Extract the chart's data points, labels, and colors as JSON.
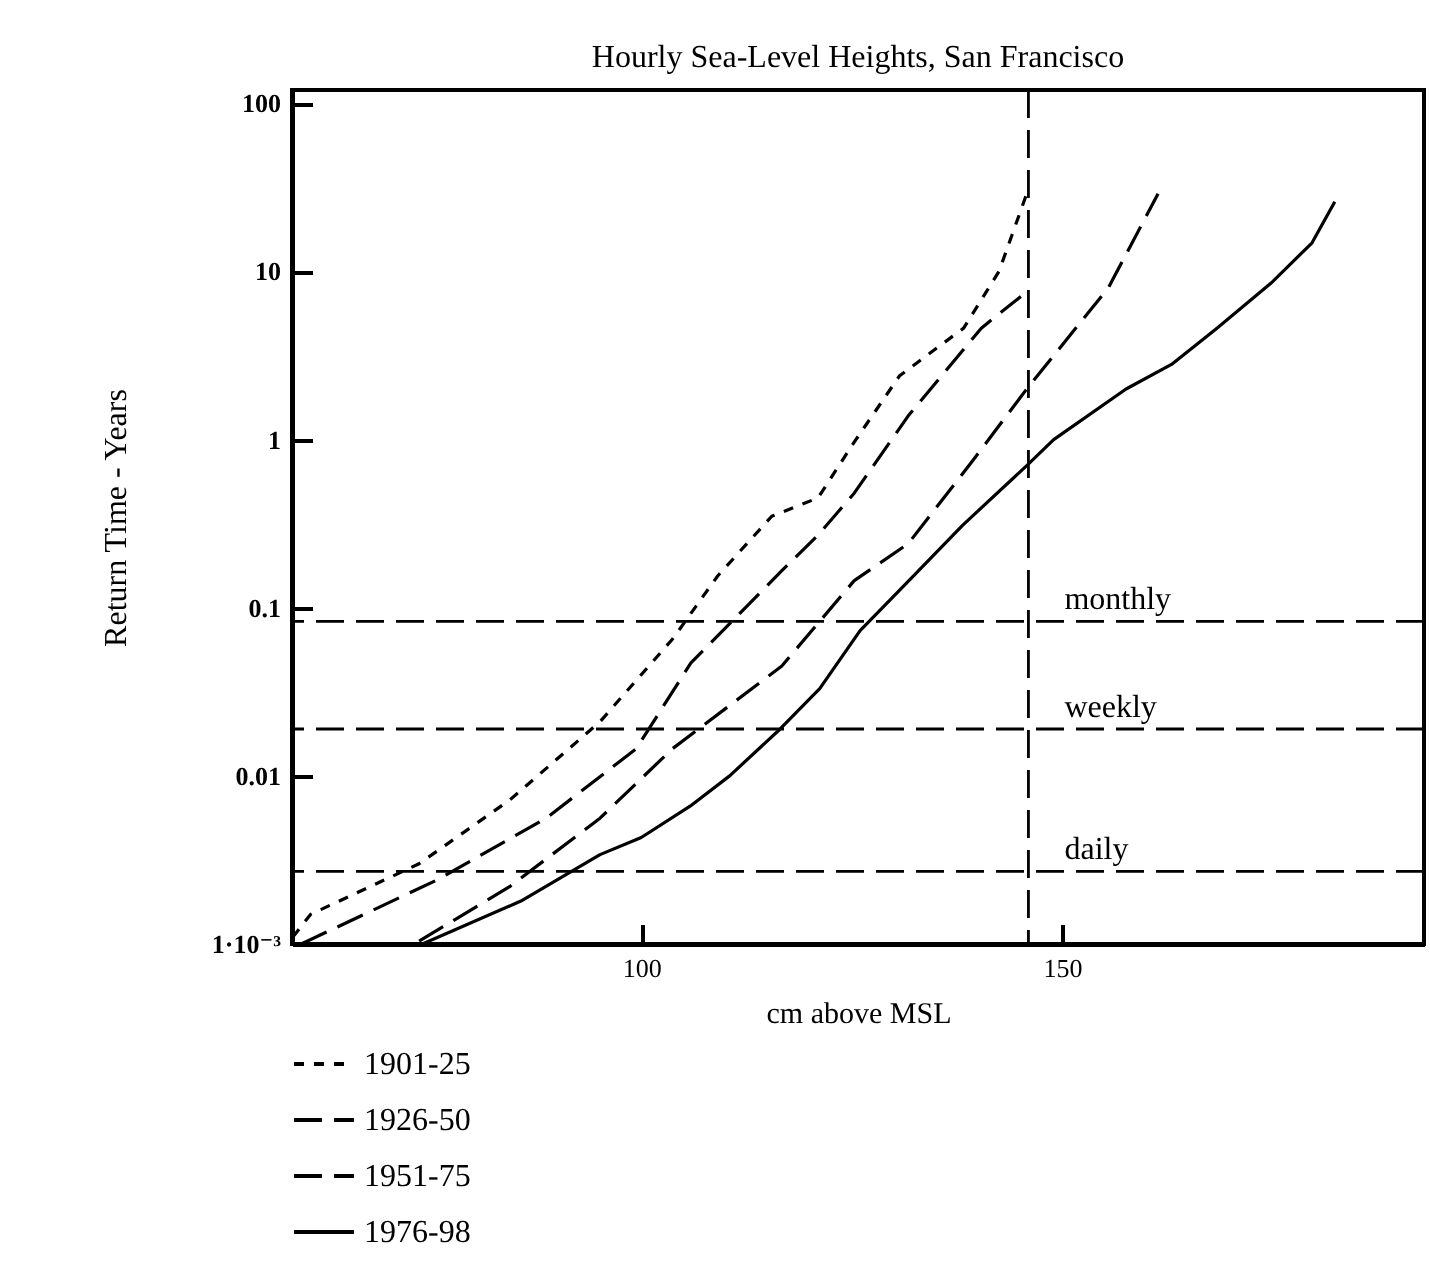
{
  "chart_data": {
    "type": "line",
    "title": "Hourly Sea-Level Heights, San Francisco",
    "xlabel": "cm above MSL",
    "ylabel": "Return Time - Years",
    "log": "y",
    "grid": false,
    "legend": "bottom left",
    "xlim": [
      58.5,
      193
    ],
    "xticks": [
      100,
      150
    ],
    "ylim": [
      0.001,
      120
    ],
    "yticks": [
      {
        "value": 0.001,
        "label": "1·10⁻³"
      },
      0.01,
      0.1,
      1,
      10,
      100
    ],
    "series": [
      {
        "name": "1901-25",
        "color": "#000000",
        "line_style": "dotted",
        "x": [
          58.6,
          60.7,
          73.6,
          84.4,
          95.1,
          103.7,
          109.1,
          115.5,
          121,
          125.2,
          130.7,
          138.3,
          142.5,
          145.8
        ],
        "values": [
          0.0011,
          0.0015,
          0.003,
          0.0072,
          0.021,
          0.065,
          0.155,
          0.35,
          0.45,
          0.95,
          2.4,
          4.6,
          10,
          29
        ]
      },
      {
        "name": "1926-50",
        "color": "#000000",
        "line_style": "dashed",
        "x": [
          59.6,
          75.7,
          88.7,
          99.4,
          105.9,
          116.7,
          121,
          125.3,
          131.7,
          140.4,
          145.1
        ],
        "values": [
          0.001,
          0.0024,
          0.0056,
          0.0145,
          0.047,
          0.166,
          0.27,
          0.48,
          1.38,
          4.6,
          7.1
        ]
      },
      {
        "name": "1951-75",
        "color": "#000000",
        "line_style": "dashed",
        "x": [
          73.6,
          84.4,
          95.1,
          103.7,
          116.7,
          125.3,
          131.7,
          139.3,
          145.8,
          155.5,
          161.4
        ],
        "values": [
          0.00104,
          0.0022,
          0.0056,
          0.0145,
          0.045,
          0.145,
          0.24,
          0.74,
          2,
          8,
          29
        ]
      },
      {
        "name": "1976-98",
        "color": "#000000",
        "line_style": "solid",
        "x": [
          74,
          85.7,
          95.1,
          100,
          105.8,
          110.5,
          116.5,
          121.2,
          126,
          131.8,
          138.2,
          145.8,
          149,
          157.6,
          163,
          168.4,
          174.8,
          179.7,
          182.4
        ],
        "values": [
          0.001,
          0.0018,
          0.0034,
          0.0043,
          0.0066,
          0.01,
          0.019,
          0.033,
          0.073,
          0.145,
          0.31,
          0.7,
          1,
          2,
          2.8,
          4.6,
          8.5,
          14.8,
          26
        ]
      }
    ],
    "ref_lines": [
      {
        "axis": "y",
        "value": 0.083,
        "label": "monthly",
        "color": "#000000",
        "line_style": "dashed"
      },
      {
        "axis": "y",
        "value": 0.019,
        "label": "weekly",
        "color": "#000000",
        "line_style": "dashed"
      },
      {
        "axis": "y",
        "value": 0.0027,
        "label": "daily",
        "color": "#000000",
        "line_style": "dashed"
      },
      {
        "axis": "x",
        "value": 146,
        "color": "#000000",
        "line_style": "dashed"
      }
    ]
  }
}
